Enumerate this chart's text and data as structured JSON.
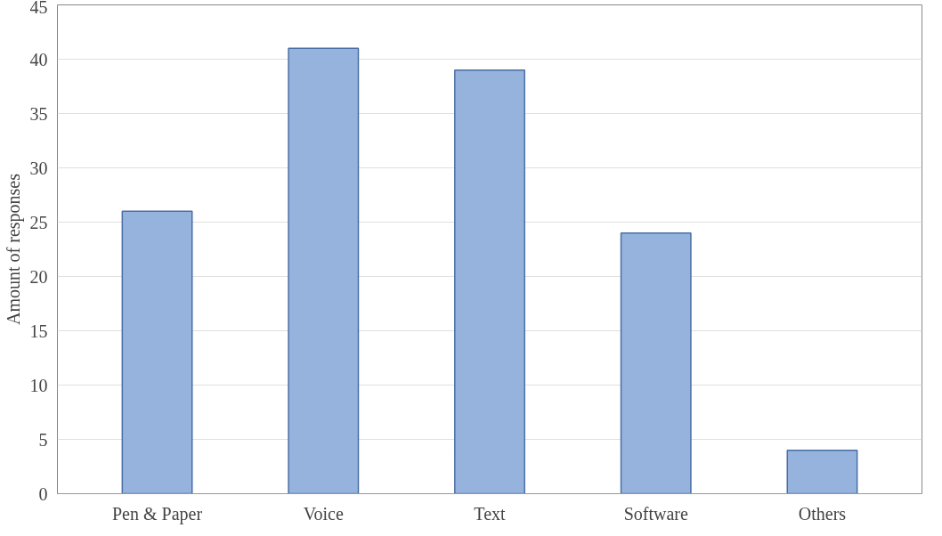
{
  "chart_data": {
    "type": "bar",
    "ylabel": "Amount of responses",
    "categories": [
      "Pen & Paper",
      "Voice",
      "Text",
      "Software",
      "Others"
    ],
    "values": [
      26,
      41,
      39,
      24,
      4
    ],
    "color": "#95b3dd",
    "ylim": [
      0,
      45
    ],
    "yticks": [
      0,
      5,
      10,
      15,
      20,
      25,
      30,
      35,
      40,
      45
    ],
    "grid": "y"
  }
}
